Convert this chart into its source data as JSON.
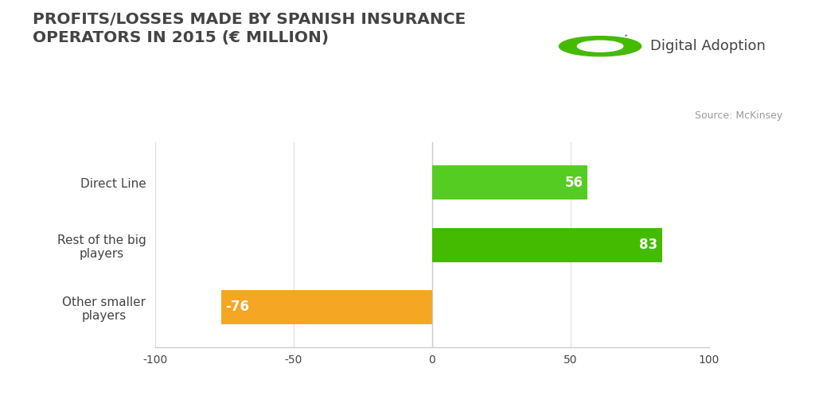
{
  "title_line1": "PROFITS/LOSSES MADE BY SPANISH INSURANCE",
  "title_line2": "OPERATORS IN 2015 (€ MILLION)",
  "source": "Source: McKinsey",
  "categories": [
    "Direct Line",
    "Rest of the big\nplayers",
    "Other smaller\nplayers"
  ],
  "values": [
    56,
    83,
    -76
  ],
  "bar_colors": [
    "#55cc22",
    "#44bb00",
    "#f5a623"
  ],
  "label_color": "#ffffff",
  "xlim": [
    -100,
    100
  ],
  "xticks": [
    -100,
    -50,
    0,
    50,
    100
  ],
  "background_color": "#ffffff",
  "bar_height": 0.55,
  "title_fontsize": 14.5,
  "tick_fontsize": 10,
  "label_fontsize": 12,
  "category_fontsize": 11,
  "source_fontsize": 9,
  "grid_color": "#dddddd",
  "axis_color": "#cccccc",
  "text_color": "#444444",
  "logo_text": "Digital Adoption",
  "logo_color": "#44bb00",
  "logo_fontsize": 13
}
